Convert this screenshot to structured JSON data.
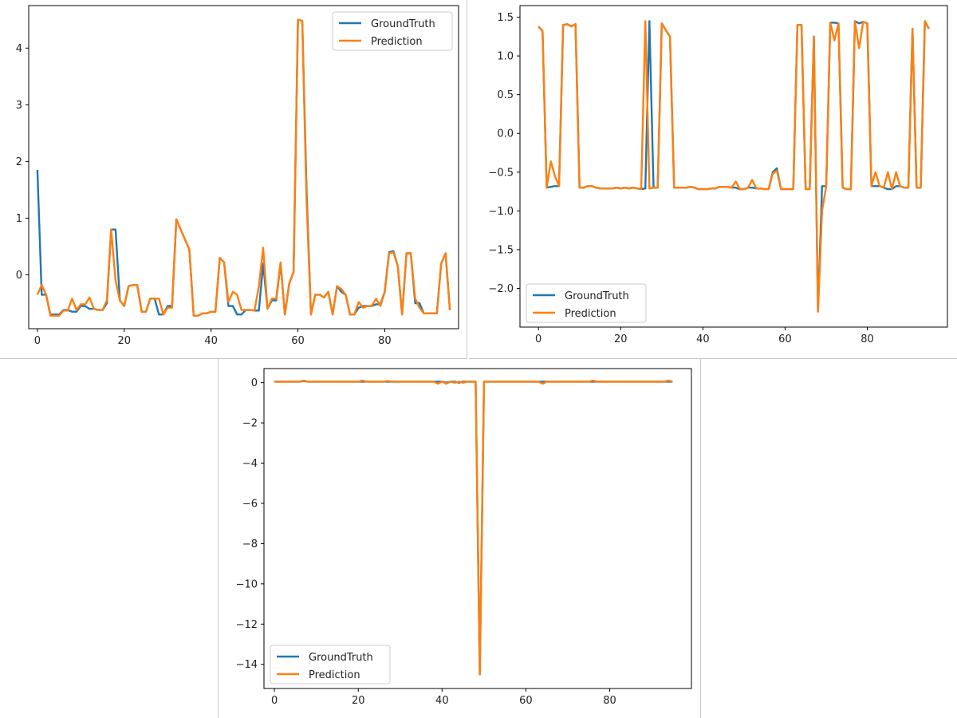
{
  "colors": {
    "ground_truth": "#1f77b4",
    "prediction": "#ff7f0e"
  },
  "chart_data": [
    {
      "type": "line",
      "legend": "top-right",
      "xlim": [
        -2,
        97
      ],
      "ylim": [
        -0.95,
        4.75
      ],
      "xticks": [
        0,
        20,
        40,
        60,
        80
      ],
      "yticks": [
        0,
        1,
        2,
        3,
        4
      ],
      "series": [
        {
          "name": "GroundTruth",
          "values": [
            1.85,
            -0.35,
            -0.35,
            -0.7,
            -0.7,
            -0.7,
            -0.62,
            -0.62,
            -0.65,
            -0.65,
            -0.55,
            -0.55,
            -0.6,
            -0.6,
            -0.62,
            -0.62,
            -0.5,
            0.8,
            0.8,
            -0.45,
            -0.55,
            -0.2,
            -0.18,
            -0.18,
            -0.65,
            -0.65,
            -0.42,
            -0.42,
            -0.7,
            -0.7,
            -0.55,
            -0.55,
            0.98,
            0.8,
            0.62,
            0.45,
            -0.72,
            -0.72,
            -0.68,
            -0.68,
            -0.65,
            -0.65,
            0.3,
            0.22,
            -0.55,
            -0.55,
            -0.7,
            -0.7,
            -0.62,
            -0.62,
            -0.63,
            -0.63,
            0.2,
            -0.6,
            -0.45,
            -0.45,
            0.2,
            -0.7,
            -0.15,
            0.05,
            4.5,
            4.48,
            1.5,
            -0.7,
            -0.35,
            -0.35,
            -0.4,
            -0.3,
            -0.7,
            -0.2,
            -0.3,
            -0.35,
            -0.7,
            -0.7,
            -0.58,
            -0.55,
            -0.55,
            -0.55,
            -0.52,
            -0.52,
            -0.3,
            0.4,
            0.42,
            0.15,
            -0.7,
            0.38,
            0.38,
            -0.5,
            -0.5,
            -0.68,
            -0.68,
            -0.68,
            -0.68,
            0.2,
            0.38,
            -0.62
          ]
        },
        {
          "name": "Prediction",
          "values": [
            -0.35,
            -0.18,
            -0.35,
            -0.72,
            -0.72,
            -0.72,
            -0.63,
            -0.63,
            -0.42,
            -0.62,
            -0.52,
            -0.52,
            -0.4,
            -0.6,
            -0.62,
            -0.62,
            -0.45,
            0.8,
            -0.1,
            -0.45,
            -0.55,
            -0.2,
            -0.18,
            -0.18,
            -0.65,
            -0.65,
            -0.42,
            -0.42,
            -0.42,
            -0.7,
            -0.58,
            -0.58,
            0.98,
            0.8,
            0.62,
            0.45,
            -0.72,
            -0.72,
            -0.68,
            -0.68,
            -0.65,
            -0.65,
            0.3,
            0.22,
            -0.48,
            -0.3,
            -0.35,
            -0.62,
            -0.62,
            -0.62,
            -0.63,
            -0.2,
            0.48,
            -0.6,
            -0.42,
            -0.42,
            0.22,
            -0.7,
            -0.15,
            0.05,
            4.5,
            4.48,
            1.3,
            -0.7,
            -0.35,
            -0.35,
            -0.4,
            -0.3,
            -0.7,
            -0.2,
            -0.25,
            -0.35,
            -0.7,
            -0.7,
            -0.48,
            -0.58,
            -0.55,
            -0.55,
            -0.42,
            -0.55,
            -0.3,
            0.38,
            0.4,
            0.15,
            -0.7,
            0.38,
            0.38,
            -0.42,
            -0.58,
            -0.68,
            -0.68,
            -0.68,
            -0.68,
            0.2,
            0.38,
            -0.62
          ]
        }
      ]
    },
    {
      "type": "line",
      "legend": "bottom-left",
      "xlim": [
        -4.5,
        99.5
      ],
      "ylim": [
        -2.5,
        1.65
      ],
      "xticks": [
        0,
        20,
        40,
        60,
        80
      ],
      "yticks": [
        1.5,
        1.0,
        0.5,
        0.0,
        -0.5,
        -1.0,
        -1.5,
        -2.0
      ],
      "series": [
        {
          "name": "GroundTruth",
          "values": [
            1.38,
            1.32,
            -0.7,
            -0.69,
            -0.68,
            -0.68,
            1.4,
            1.41,
            1.38,
            1.41,
            -0.7,
            -0.7,
            -0.68,
            -0.68,
            -0.7,
            -0.71,
            -0.71,
            -0.71,
            -0.71,
            -0.7,
            -0.71,
            -0.7,
            -0.71,
            -0.7,
            -0.71,
            -0.72,
            -0.71,
            1.45,
            -0.7,
            -0.7,
            1.42,
            1.33,
            1.25,
            -0.7,
            -0.7,
            -0.7,
            -0.7,
            -0.69,
            -0.7,
            -0.72,
            -0.72,
            -0.72,
            -0.71,
            -0.71,
            -0.69,
            -0.69,
            -0.69,
            -0.7,
            -0.7,
            -0.72,
            -0.72,
            -0.7,
            -0.7,
            -0.71,
            -0.71,
            -0.72,
            -0.72,
            -0.5,
            -0.45,
            -0.72,
            -0.72,
            -0.72,
            -0.72,
            1.4,
            1.4,
            -0.72,
            -0.72,
            1.25,
            -2.3,
            -0.68,
            -0.68,
            1.43,
            1.43,
            1.42,
            -0.7,
            -0.72,
            -0.72,
            1.45,
            1.42,
            1.44,
            1.42,
            -0.68,
            -0.68,
            -0.68,
            -0.7,
            -0.72,
            -0.72,
            -0.68,
            -0.68,
            -0.7,
            -0.7,
            1.35,
            -0.7,
            -0.7,
            1.45,
            1.35
          ]
        },
        {
          "name": "Prediction",
          "values": [
            1.38,
            1.32,
            -0.7,
            -0.36,
            -0.55,
            -0.68,
            1.4,
            1.41,
            1.38,
            1.41,
            -0.7,
            -0.7,
            -0.68,
            -0.68,
            -0.7,
            -0.71,
            -0.71,
            -0.71,
            -0.71,
            -0.7,
            -0.71,
            -0.7,
            -0.71,
            -0.7,
            -0.71,
            -0.72,
            1.45,
            -0.71,
            -0.7,
            -0.7,
            1.42,
            1.33,
            1.25,
            -0.7,
            -0.7,
            -0.7,
            -0.7,
            -0.69,
            -0.7,
            -0.72,
            -0.72,
            -0.72,
            -0.71,
            -0.71,
            -0.69,
            -0.69,
            -0.69,
            -0.7,
            -0.62,
            -0.72,
            -0.72,
            -0.7,
            -0.6,
            -0.71,
            -0.71,
            -0.72,
            -0.72,
            -0.52,
            -0.48,
            -0.72,
            -0.72,
            -0.72,
            -0.72,
            1.4,
            1.4,
            -0.72,
            -0.72,
            1.25,
            -2.3,
            -1.0,
            -0.68,
            1.43,
            1.2,
            1.42,
            -0.7,
            -0.72,
            -0.72,
            1.45,
            1.1,
            1.44,
            1.42,
            -0.68,
            -0.5,
            -0.68,
            -0.7,
            -0.5,
            -0.72,
            -0.5,
            -0.68,
            -0.7,
            -0.7,
            1.35,
            -0.7,
            -0.7,
            1.45,
            1.35
          ]
        }
      ]
    },
    {
      "type": "line",
      "legend": "bottom-left",
      "xlim": [
        -2.5,
        99.5
      ],
      "ylim": [
        -15.2,
        0.7
      ],
      "xticks": [
        0,
        20,
        40,
        60,
        80
      ],
      "yticks": [
        0,
        -2,
        -4,
        -6,
        -8,
        -10,
        -12,
        -14
      ],
      "series": [
        {
          "name": "GroundTruth",
          "values": [
            0.05,
            0.05,
            0.05,
            0.05,
            0.05,
            0.05,
            0.05,
            0.08,
            0.05,
            0.05,
            0.05,
            0.05,
            0.05,
            0.05,
            0.05,
            0.05,
            0.05,
            0.05,
            0.05,
            0.05,
            0.05,
            0.05,
            0.05,
            0.05,
            0.05,
            0.05,
            0.05,
            0.05,
            0.05,
            0.05,
            0.05,
            0.05,
            0.05,
            0.05,
            0.05,
            0.05,
            0.05,
            0.05,
            0.05,
            0.05,
            0.05,
            0.0,
            0.05,
            0.05,
            0.0,
            0.05,
            0.05,
            0.05,
            0.05,
            -14.5,
            0.05,
            0.05,
            0.05,
            0.05,
            0.05,
            0.05,
            0.05,
            0.05,
            0.05,
            0.05,
            0.05,
            0.05,
            0.05,
            0.05,
            0.05,
            0.05,
            0.05,
            0.05,
            0.05,
            0.05,
            0.05,
            0.05,
            0.05,
            0.05,
            0.05,
            0.05,
            0.05,
            0.05,
            0.05,
            0.05,
            0.05,
            0.05,
            0.05,
            0.05,
            0.05,
            0.05,
            0.05,
            0.05,
            0.05,
            0.05,
            0.05,
            0.05,
            0.05,
            0.05,
            0.05,
            0.05
          ]
        },
        {
          "name": "Prediction",
          "values": [
            0.05,
            0.05,
            0.05,
            0.05,
            0.05,
            0.05,
            0.05,
            0.1,
            0.05,
            0.05,
            0.05,
            0.05,
            0.05,
            0.05,
            0.05,
            0.05,
            0.05,
            0.05,
            0.05,
            0.05,
            0.05,
            0.1,
            0.05,
            0.05,
            0.05,
            0.05,
            0.05,
            0.08,
            0.05,
            0.05,
            0.05,
            0.05,
            0.05,
            0.05,
            0.05,
            0.05,
            0.05,
            0.05,
            0.05,
            -0.05,
            0.05,
            -0.05,
            0.05,
            0.0,
            0.05,
            0.0,
            0.05,
            0.05,
            0.05,
            -14.5,
            0.05,
            0.05,
            0.05,
            0.05,
            0.05,
            0.05,
            0.05,
            0.05,
            0.05,
            0.05,
            0.05,
            0.05,
            0.05,
            0.05,
            -0.05,
            0.05,
            0.05,
            0.05,
            0.05,
            0.05,
            0.05,
            0.05,
            0.05,
            0.05,
            0.05,
            0.05,
            0.1,
            0.05,
            0.05,
            0.05,
            0.05,
            0.05,
            0.05,
            0.05,
            0.05,
            0.05,
            0.05,
            0.05,
            0.05,
            0.05,
            0.05,
            0.05,
            0.05,
            0.05,
            0.1,
            0.05
          ]
        }
      ]
    }
  ]
}
